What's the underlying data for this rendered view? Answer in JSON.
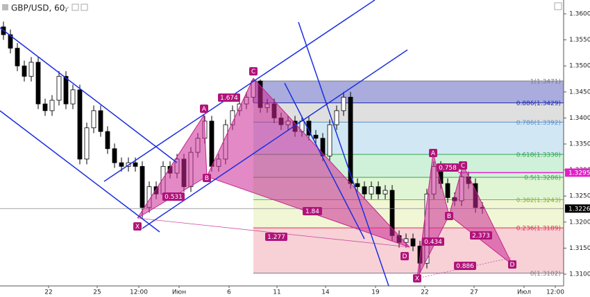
{
  "chart_data": {
    "type": "candlestick",
    "title": "GBP/USD, 60,",
    "color": "#000000",
    "up_fill": "#ffffff",
    "x": [
      0,
      1,
      2,
      3,
      4,
      5,
      6,
      7,
      8,
      9,
      10,
      11,
      12,
      13,
      14,
      15,
      16,
      17,
      18,
      19,
      20,
      21,
      22,
      23,
      24,
      25,
      26,
      27,
      28,
      29,
      30,
      31,
      32,
      33,
      34,
      35,
      36,
      37,
      38,
      39,
      40,
      41,
      42,
      43,
      44,
      45,
      46,
      47,
      48,
      49,
      50,
      51,
      52,
      53,
      54,
      55,
      56,
      57,
      58,
      59,
      60,
      61,
      62,
      63,
      64,
      65,
      66,
      67,
      68,
      69
    ],
    "open": [
      1.3575,
      1.356,
      1.3534,
      1.35,
      1.348,
      1.3507,
      1.3427,
      1.3414,
      1.3434,
      1.348,
      1.3427,
      1.3454,
      1.3321,
      1.3381,
      1.3414,
      1.3374,
      1.3341,
      1.3314,
      1.3307,
      1.3314,
      1.3307,
      1.3228,
      1.3268,
      1.3254,
      1.3307,
      1.3294,
      1.3321,
      1.3268,
      1.3334,
      1.3361,
      1.3394,
      1.3307,
      1.3321,
      1.3387,
      1.3414,
      1.3427,
      1.344,
      1.3471,
      1.342,
      1.3427,
      1.34,
      1.3387,
      1.3394,
      1.3374,
      1.3394,
      1.3367,
      1.3361,
      1.3327,
      1.3387,
      1.3414,
      1.344,
      1.3274,
      1.3268,
      1.3254,
      1.3268,
      1.3254,
      1.3261,
      1.3174,
      1.3161,
      1.3168,
      1.3154,
      1.3121,
      1.3254,
      1.3307,
      1.3274,
      1.3247,
      1.3241,
      1.3287,
      1.3274,
      1.3228
    ],
    "high": [
      1.3585,
      1.357,
      1.3544,
      1.351,
      1.3517,
      1.3517,
      1.3437,
      1.3444,
      1.349,
      1.349,
      1.3464,
      1.3464,
      1.3391,
      1.3424,
      1.3424,
      1.3384,
      1.3351,
      1.3324,
      1.3324,
      1.3324,
      1.3317,
      1.3278,
      1.3278,
      1.3317,
      1.3317,
      1.3331,
      1.3331,
      1.3344,
      1.3371,
      1.3404,
      1.3404,
      1.3331,
      1.3397,
      1.3424,
      1.3437,
      1.345,
      1.3474,
      1.3474,
      1.3437,
      1.3437,
      1.341,
      1.3404,
      1.3404,
      1.3404,
      1.3404,
      1.3377,
      1.3371,
      1.3397,
      1.3424,
      1.345,
      1.345,
      1.3284,
      1.3278,
      1.3278,
      1.3278,
      1.3271,
      1.3271,
      1.3184,
      1.3178,
      1.3178,
      1.3164,
      1.3264,
      1.3317,
      1.3317,
      1.3284,
      1.3257,
      1.3297,
      1.3297,
      1.3284,
      1.3238
    ],
    "low": [
      1.355,
      1.3524,
      1.349,
      1.347,
      1.347,
      1.3417,
      1.3404,
      1.3404,
      1.3424,
      1.3417,
      1.3417,
      1.3311,
      1.3311,
      1.3371,
      1.3364,
      1.3331,
      1.3304,
      1.3297,
      1.3297,
      1.3297,
      1.3208,
      1.3218,
      1.3244,
      1.3244,
      1.3284,
      1.3284,
      1.3258,
      1.3258,
      1.3324,
      1.3351,
      1.3297,
      1.3297,
      1.3311,
      1.3377,
      1.3404,
      1.3417,
      1.343,
      1.341,
      1.341,
      1.339,
      1.3377,
      1.3377,
      1.3364,
      1.3364,
      1.3357,
      1.3351,
      1.3317,
      1.3317,
      1.3377,
      1.3404,
      1.3264,
      1.3258,
      1.3244,
      1.3244,
      1.3244,
      1.3244,
      1.3164,
      1.3151,
      1.3151,
      1.3144,
      1.3102,
      1.3111,
      1.3244,
      1.3264,
      1.3237,
      1.3231,
      1.3231,
      1.3264,
      1.3218,
      1.3216
    ],
    "close": [
      1.356,
      1.3534,
      1.35,
      1.348,
      1.3507,
      1.3427,
      1.3414,
      1.3434,
      1.348,
      1.3427,
      1.3454,
      1.3321,
      1.3381,
      1.3414,
      1.3374,
      1.3341,
      1.3314,
      1.3307,
      1.3314,
      1.3307,
      1.3228,
      1.3268,
      1.3254,
      1.3307,
      1.3294,
      1.3321,
      1.3268,
      1.3334,
      1.3361,
      1.3394,
      1.3307,
      1.3321,
      1.3387,
      1.3414,
      1.3427,
      1.344,
      1.3471,
      1.342,
      1.3427,
      1.34,
      1.3387,
      1.3394,
      1.3374,
      1.3394,
      1.3367,
      1.3361,
      1.3327,
      1.3387,
      1.3414,
      1.344,
      1.3274,
      1.3268,
      1.3254,
      1.3268,
      1.3254,
      1.3261,
      1.3174,
      1.3161,
      1.3168,
      1.3154,
      1.3121,
      1.3254,
      1.3307,
      1.3274,
      1.3247,
      1.3241,
      1.3287,
      1.3274,
      1.3228,
      1.3226
    ],
    "xlim": [
      -0.5,
      80.7
    ],
    "xticks": [
      {
        "value": 6.5,
        "label": "22"
      },
      {
        "value": 13.5,
        "label": "25"
      },
      {
        "value": 19.5,
        "label": "12:00"
      },
      {
        "value": 25.3,
        "label": "Июн"
      },
      {
        "value": 32.5,
        "label": "6"
      },
      {
        "value": 39.4,
        "label": "11"
      },
      {
        "value": 46.4,
        "label": "14"
      },
      {
        "value": 53.6,
        "label": "19"
      },
      {
        "value": 60.7,
        "label": "22"
      },
      {
        "value": 67.8,
        "label": "27"
      },
      {
        "value": 75,
        "label": "Июл"
      },
      {
        "value": 79.5,
        "label": "12:00"
      }
    ],
    "ylim": [
      1.30774,
      1.36266
    ],
    "yticks": [
      {
        "value": 1.31,
        "label": "1.3100"
      },
      {
        "value": 1.315,
        "label": "1.3150"
      },
      {
        "value": 1.32,
        "label": "1.3200"
      },
      {
        "value": 1.325,
        "label": "1.3250"
      },
      {
        "value": 1.33,
        "label": "1.3300"
      },
      {
        "value": 1.335,
        "label": "1.3350"
      },
      {
        "value": 1.34,
        "label": "1.3400"
      },
      {
        "value": 1.345,
        "label": "1.3450"
      },
      {
        "value": 1.35,
        "label": "1.3500"
      },
      {
        "value": 1.355,
        "label": "1.3550"
      },
      {
        "value": 1.36,
        "label": "1.3600"
      }
    ],
    "current_price": 1.3226,
    "alert_price": 1.3295,
    "fib_levels": [
      {
        "value": 1.3471,
        "label": "1(1.3471)",
        "color": "#787b86",
        "fill": "#9a9dd6"
      },
      {
        "value": 1.3429,
        "label": "0.886(1.3429)",
        "color": "#1e2ab0",
        "fill": "#d9d9d9"
      },
      {
        "value": 1.3392,
        "label": "0.786(1.3392)",
        "color": "#5b8fc8",
        "fill": "#c9e3f2"
      },
      {
        "value": 1.333,
        "label": "0.618(1.3330)",
        "color": "#2ea44f",
        "fill": "#c8efd2"
      },
      {
        "value": 1.3286,
        "label": "0.5(1.3286)",
        "color": "#3aa64a",
        "fill": "#d9f3cc"
      },
      {
        "value": 1.3243,
        "label": "0.382(1.3243)",
        "color": "#7db53a",
        "fill": "#eef5cc"
      },
      {
        "value": 1.3189,
        "label": "0.236(1.3189)",
        "color": "#e0304e",
        "fill": "#f6c9cf"
      },
      {
        "value": 1.3102,
        "label": "0(1.3102)",
        "color": "#787b86",
        "fill": "#ffffff"
      }
    ],
    "patterns": [
      {
        "points": [
          "X",
          "A",
          "B",
          "C",
          "D"
        ],
        "ratios": [
          0.531,
          1.674,
          1.84,
          1.277
        ]
      },
      {
        "points": [
          "X",
          "A",
          "B",
          "C",
          "D"
        ],
        "ratios": [
          0.758,
          0.434,
          2.373,
          0.886
        ]
      }
    ]
  }
}
